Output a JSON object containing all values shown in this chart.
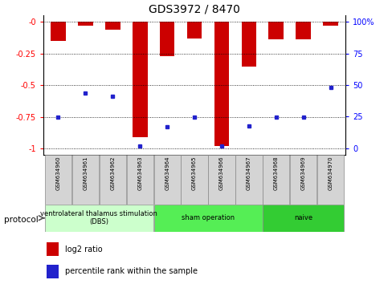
{
  "title": "GDS3972 / 8470",
  "samples": [
    "GSM634960",
    "GSM634961",
    "GSM634962",
    "GSM634963",
    "GSM634964",
    "GSM634965",
    "GSM634966",
    "GSM634967",
    "GSM634968",
    "GSM634969",
    "GSM634970"
  ],
  "log2_values": [
    -0.15,
    -0.03,
    -0.06,
    -0.91,
    -0.27,
    -0.13,
    -0.98,
    -0.35,
    -0.14,
    -0.14,
    -0.03
  ],
  "percentile_values": [
    25,
    44,
    41,
    2,
    17,
    25,
    2,
    18,
    25,
    25,
    48
  ],
  "bar_color": "#cc0000",
  "marker_color": "#2222cc",
  "ylim_left": [
    -1.05,
    0.05
  ],
  "ylim_right": [
    -5.25,
    105
  ],
  "yticks_left": [
    0,
    -0.25,
    -0.5,
    -0.75,
    -1.0
  ],
  "ytick_labels_left": [
    "-0",
    "-0.25",
    "-0.5",
    "-0.75",
    "-1"
  ],
  "yticks_right": [
    0,
    25,
    50,
    75,
    100
  ],
  "ytick_labels_right": [
    "0",
    "25",
    "50",
    "75",
    "100%"
  ],
  "groups": [
    {
      "label": "ventrolateral thalamus stimulation\n(DBS)",
      "start": 0,
      "end": 3,
      "color": "#ccffcc"
    },
    {
      "label": "sham operation",
      "start": 4,
      "end": 7,
      "color": "#55ee55"
    },
    {
      "label": "naive",
      "start": 8,
      "end": 10,
      "color": "#33cc33"
    }
  ],
  "protocol_label": "protocol",
  "legend_log2": "log2 ratio",
  "legend_percentile": "percentile rank within the sample",
  "bar_width": 0.55,
  "title_fontsize": 10,
  "tick_fontsize": 7,
  "xlabel_fontsize": 6
}
